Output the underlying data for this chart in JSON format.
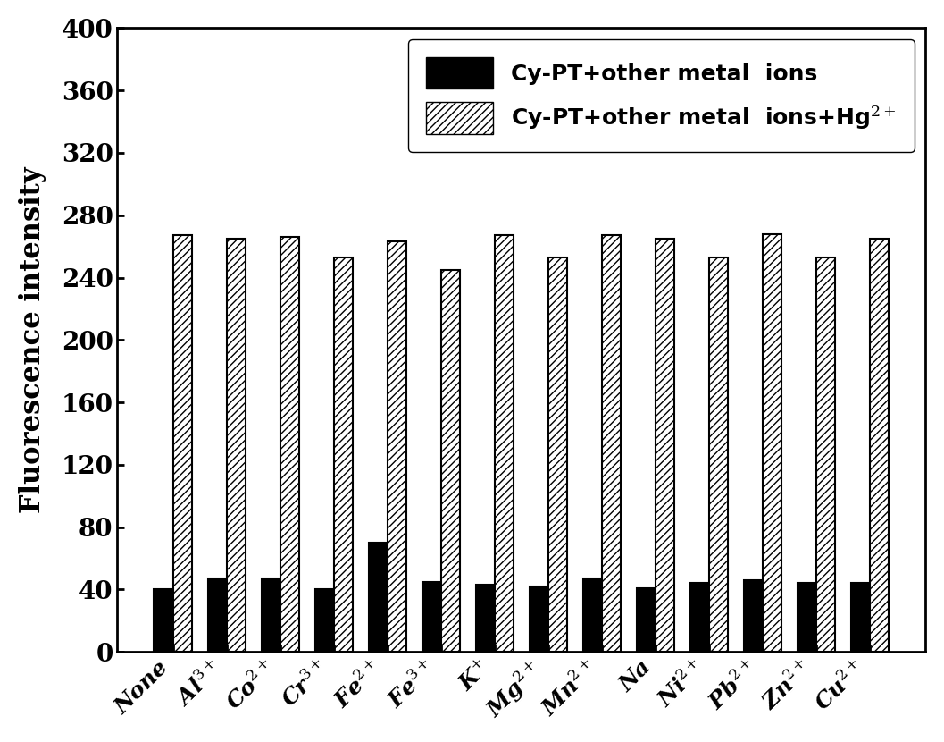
{
  "categories": [
    "None",
    "Al$^{3+}$",
    "Co$^{2+}$",
    "Cr$^{3+}$",
    "Fe$^{2+}$",
    "Fe$^{3+}$",
    "K$^{+}$",
    "Mg$^{2+}$",
    "Mn$^{2+}$",
    "Na",
    "Ni$^{2+}$",
    "Pb$^{2+}$",
    "Zn$^{2+}$",
    "Cu$^{2+}$"
  ],
  "solid_values": [
    40,
    47,
    47,
    40,
    70,
    45,
    43,
    42,
    47,
    41,
    44,
    46,
    44,
    44
  ],
  "hatch_values": [
    267,
    265,
    266,
    253,
    263,
    245,
    267,
    253,
    267,
    265,
    253,
    268,
    253,
    265
  ],
  "ylabel": "Fluorescence intensity",
  "ylim": [
    0,
    400
  ],
  "yticks": [
    0,
    40,
    80,
    120,
    160,
    200,
    240,
    280,
    320,
    360,
    400
  ],
  "legend_solid": "Cy-PT+other metal  ions",
  "legend_hatch": "Cy-PT+other metal  ions+Hg$^{2+}$",
  "bar_color": "#000000",
  "hatch_pattern": "////",
  "background_color": "#ffffff",
  "bar_width": 0.35,
  "ylabel_fontsize": 22,
  "tick_fontsize": 20,
  "xtick_fontsize": 18,
  "legend_fontsize": 18
}
